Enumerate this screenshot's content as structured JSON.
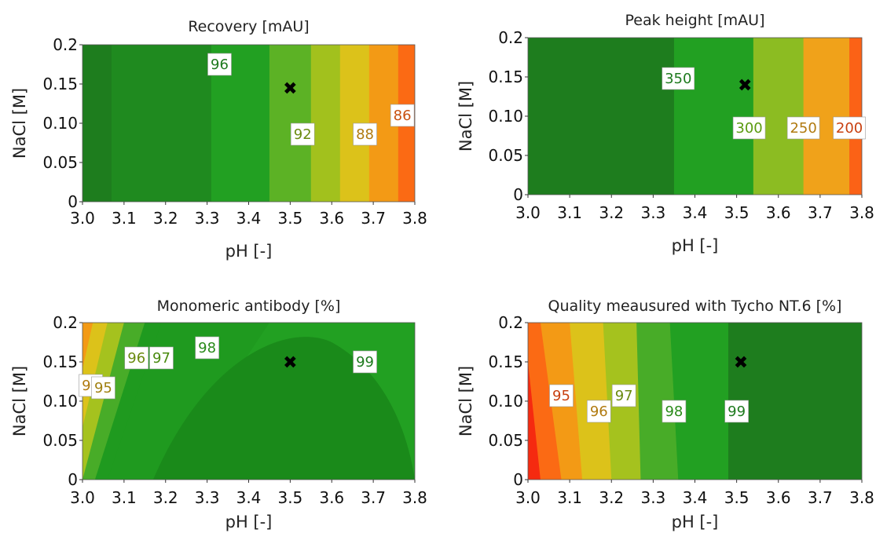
{
  "chart_data": [
    {
      "type": "heatmap",
      "title": "Recovery [mAU]",
      "xlabel": "pH [-]",
      "ylabel": "NaCl [M]",
      "xlim": [
        3.0,
        3.8
      ],
      "ylim": [
        0,
        0.2
      ],
      "xticks": [
        "3.0",
        "3.1",
        "3.2",
        "3.3",
        "3.4",
        "3.5",
        "3.6",
        "3.7",
        "3.8"
      ],
      "yticks": [
        "0",
        "0.05",
        "0.10",
        "0.15",
        "0.2"
      ],
      "optimum_marker": {
        "x": 3.5,
        "y": 0.145,
        "symbol": "✖"
      },
      "contour_labels": [
        {
          "text": "96",
          "x": 3.33,
          "y": 0.175,
          "color": "#1e7a1e"
        },
        {
          "text": "92",
          "x": 3.53,
          "y": 0.086,
          "color": "#6a8a10"
        },
        {
          "text": "88",
          "x": 3.68,
          "y": 0.086,
          "color": "#b07a10"
        },
        {
          "text": "86",
          "x": 3.77,
          "y": 0.11,
          "color": "#c85010"
        }
      ],
      "bands": [
        {
          "x_from": 3.0,
          "x_to": 3.07,
          "color": "#1e7d1e"
        },
        {
          "x_from": 3.07,
          "x_to": 3.31,
          "color": "#1f8a1f"
        },
        {
          "x_from": 3.31,
          "x_to": 3.45,
          "color": "#22a022"
        },
        {
          "x_from": 3.45,
          "x_to": 3.55,
          "color": "#5cb225"
        },
        {
          "x_from": 3.55,
          "x_to": 3.62,
          "color": "#a2c11d"
        },
        {
          "x_from": 3.62,
          "x_to": 3.69,
          "color": "#dcc21a"
        },
        {
          "x_from": 3.69,
          "x_to": 3.76,
          "color": "#f39a15"
        },
        {
          "x_from": 3.76,
          "x_to": 3.8,
          "color": "#fb6a14"
        }
      ]
    },
    {
      "type": "heatmap",
      "title": "Peak height [mAU]",
      "xlabel": "pH [-]",
      "ylabel": "NaCl [M]",
      "xlim": [
        3.0,
        3.8
      ],
      "ylim": [
        0,
        0.2
      ],
      "xticks": [
        "3.0",
        "3.1",
        "3.2",
        "3.3",
        "3.4",
        "3.5",
        "3.6",
        "3.7",
        "3.8"
      ],
      "yticks": [
        "0",
        "0.05",
        "0.10",
        "0.15",
        "0.2"
      ],
      "optimum_marker": {
        "x": 3.52,
        "y": 0.14,
        "symbol": "✖"
      },
      "contour_labels": [
        {
          "text": "350",
          "x": 3.36,
          "y": 0.148,
          "color": "#1e7a1e"
        },
        {
          "text": "300",
          "x": 3.53,
          "y": 0.085,
          "color": "#5a9a10"
        },
        {
          "text": "250",
          "x": 3.66,
          "y": 0.085,
          "color": "#b07a10"
        },
        {
          "text": "200",
          "x": 3.77,
          "y": 0.085,
          "color": "#c84010"
        }
      ],
      "bands": [
        {
          "x_from": 3.0,
          "x_to": 3.35,
          "color": "#1e7d1e"
        },
        {
          "x_from": 3.35,
          "x_to": 3.54,
          "color": "#22a022"
        },
        {
          "x_from": 3.54,
          "x_to": 3.66,
          "color": "#8cbc22"
        },
        {
          "x_from": 3.66,
          "x_to": 3.77,
          "color": "#f0a21a"
        },
        {
          "x_from": 3.77,
          "x_to": 3.8,
          "color": "#fb6216"
        }
      ]
    },
    {
      "type": "heatmap",
      "title": "Monomeric antibody [%]",
      "xlabel": "pH [-]",
      "ylabel": "NaCl [M]",
      "xlim": [
        3.0,
        3.8
      ],
      "ylim": [
        0,
        0.2
      ],
      "xticks": [
        "3.0",
        "3.1",
        "3.2",
        "3.3",
        "3.4",
        "3.5",
        "3.6",
        "3.7",
        "3.8"
      ],
      "yticks": [
        "0",
        "0.05",
        "0.10",
        "0.15",
        "0.2"
      ],
      "optimum_marker": {
        "x": 3.5,
        "y": 0.15,
        "symbol": "✖"
      },
      "contour_labels": [
        {
          "text": "94",
          "x": 3.02,
          "y": 0.12,
          "color": "#b07a10"
        },
        {
          "text": "95",
          "x": 3.05,
          "y": 0.117,
          "color": "#a08010"
        },
        {
          "text": "96",
          "x": 3.13,
          "y": 0.155,
          "color": "#6a8a10"
        },
        {
          "text": "97",
          "x": 3.19,
          "y": 0.155,
          "color": "#4a8a10"
        },
        {
          "text": "98",
          "x": 3.3,
          "y": 0.168,
          "color": "#2a8a1a"
        },
        {
          "text": "99",
          "x": 3.68,
          "y": 0.15,
          "color": "#1e7a1e"
        }
      ]
    },
    {
      "type": "heatmap",
      "title": "Quality meausured with Tycho NT.6 [%]",
      "xlabel": "pH [-]",
      "ylabel": "NaCl [M]",
      "xlim": [
        3.0,
        3.8
      ],
      "ylim": [
        0,
        0.2
      ],
      "xticks": [
        "3.0",
        "3.1",
        "3.2",
        "3.3",
        "3.4",
        "3.5",
        "3.6",
        "3.7",
        "3.8"
      ],
      "yticks": [
        "0",
        "0.05",
        "0.10",
        "0.15",
        "0.2"
      ],
      "optimum_marker": {
        "x": 3.51,
        "y": 0.15,
        "symbol": "✖"
      },
      "contour_labels": [
        {
          "text": "95",
          "x": 3.08,
          "y": 0.107,
          "color": "#c84010"
        },
        {
          "text": "96",
          "x": 3.17,
          "y": 0.087,
          "color": "#b07a10"
        },
        {
          "text": "97",
          "x": 3.23,
          "y": 0.107,
          "color": "#6a8a10"
        },
        {
          "text": "98",
          "x": 3.35,
          "y": 0.087,
          "color": "#2a8a1a"
        },
        {
          "text": "99",
          "x": 3.5,
          "y": 0.087,
          "color": "#1e7a1e"
        }
      ]
    }
  ]
}
